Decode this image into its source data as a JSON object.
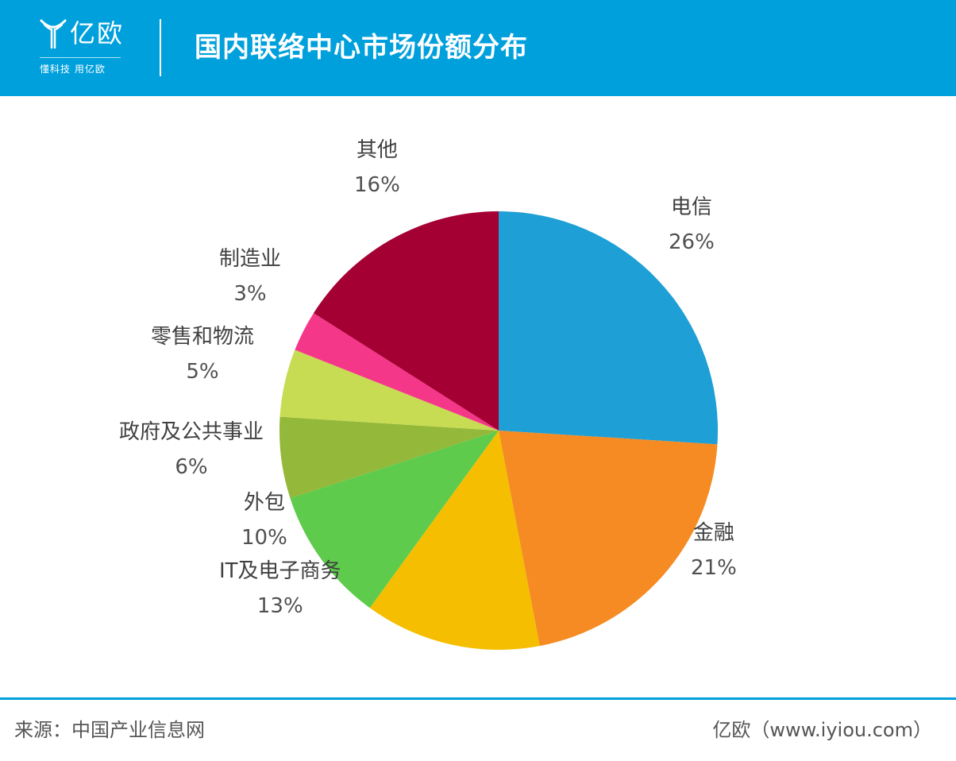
{
  "header": {
    "logo_name": "亿欧",
    "logo_slogan": "懂科技 用亿欧",
    "title": "国内联络中心市场份额分布"
  },
  "chart_data": {
    "type": "pie",
    "title": "国内联络中心市场份额分布",
    "start_angle_deg": 0,
    "direction": "clockwise",
    "slices": [
      {
        "label": "电信",
        "value": 26,
        "pct_label": "26%",
        "color": "#1e9fd5"
      },
      {
        "label": "金融",
        "value": 21,
        "pct_label": "21%",
        "color": "#f58b22"
      },
      {
        "label": "IT及电子商务",
        "value": 13,
        "pct_label": "13%",
        "color": "#f5be00"
      },
      {
        "label": "外包",
        "value": 10,
        "pct_label": "10%",
        "color": "#5ecb4c"
      },
      {
        "label": "政府及公共事业",
        "value": 6,
        "pct_label": "6%",
        "color": "#93b83a"
      },
      {
        "label": "零售和物流",
        "value": 5,
        "pct_label": "5%",
        "color": "#c7dc52"
      },
      {
        "label": "制造业",
        "value": 3,
        "pct_label": "3%",
        "color": "#f53789"
      },
      {
        "label": "其他",
        "value": 16,
        "pct_label": "16%",
        "color": "#a50034"
      }
    ]
  },
  "footer": {
    "source": "来源：中国产业信息网",
    "credit": "亿欧（www.iyiou.com）"
  },
  "colors": {
    "brand": "#00a0dc",
    "text": "#404040"
  }
}
